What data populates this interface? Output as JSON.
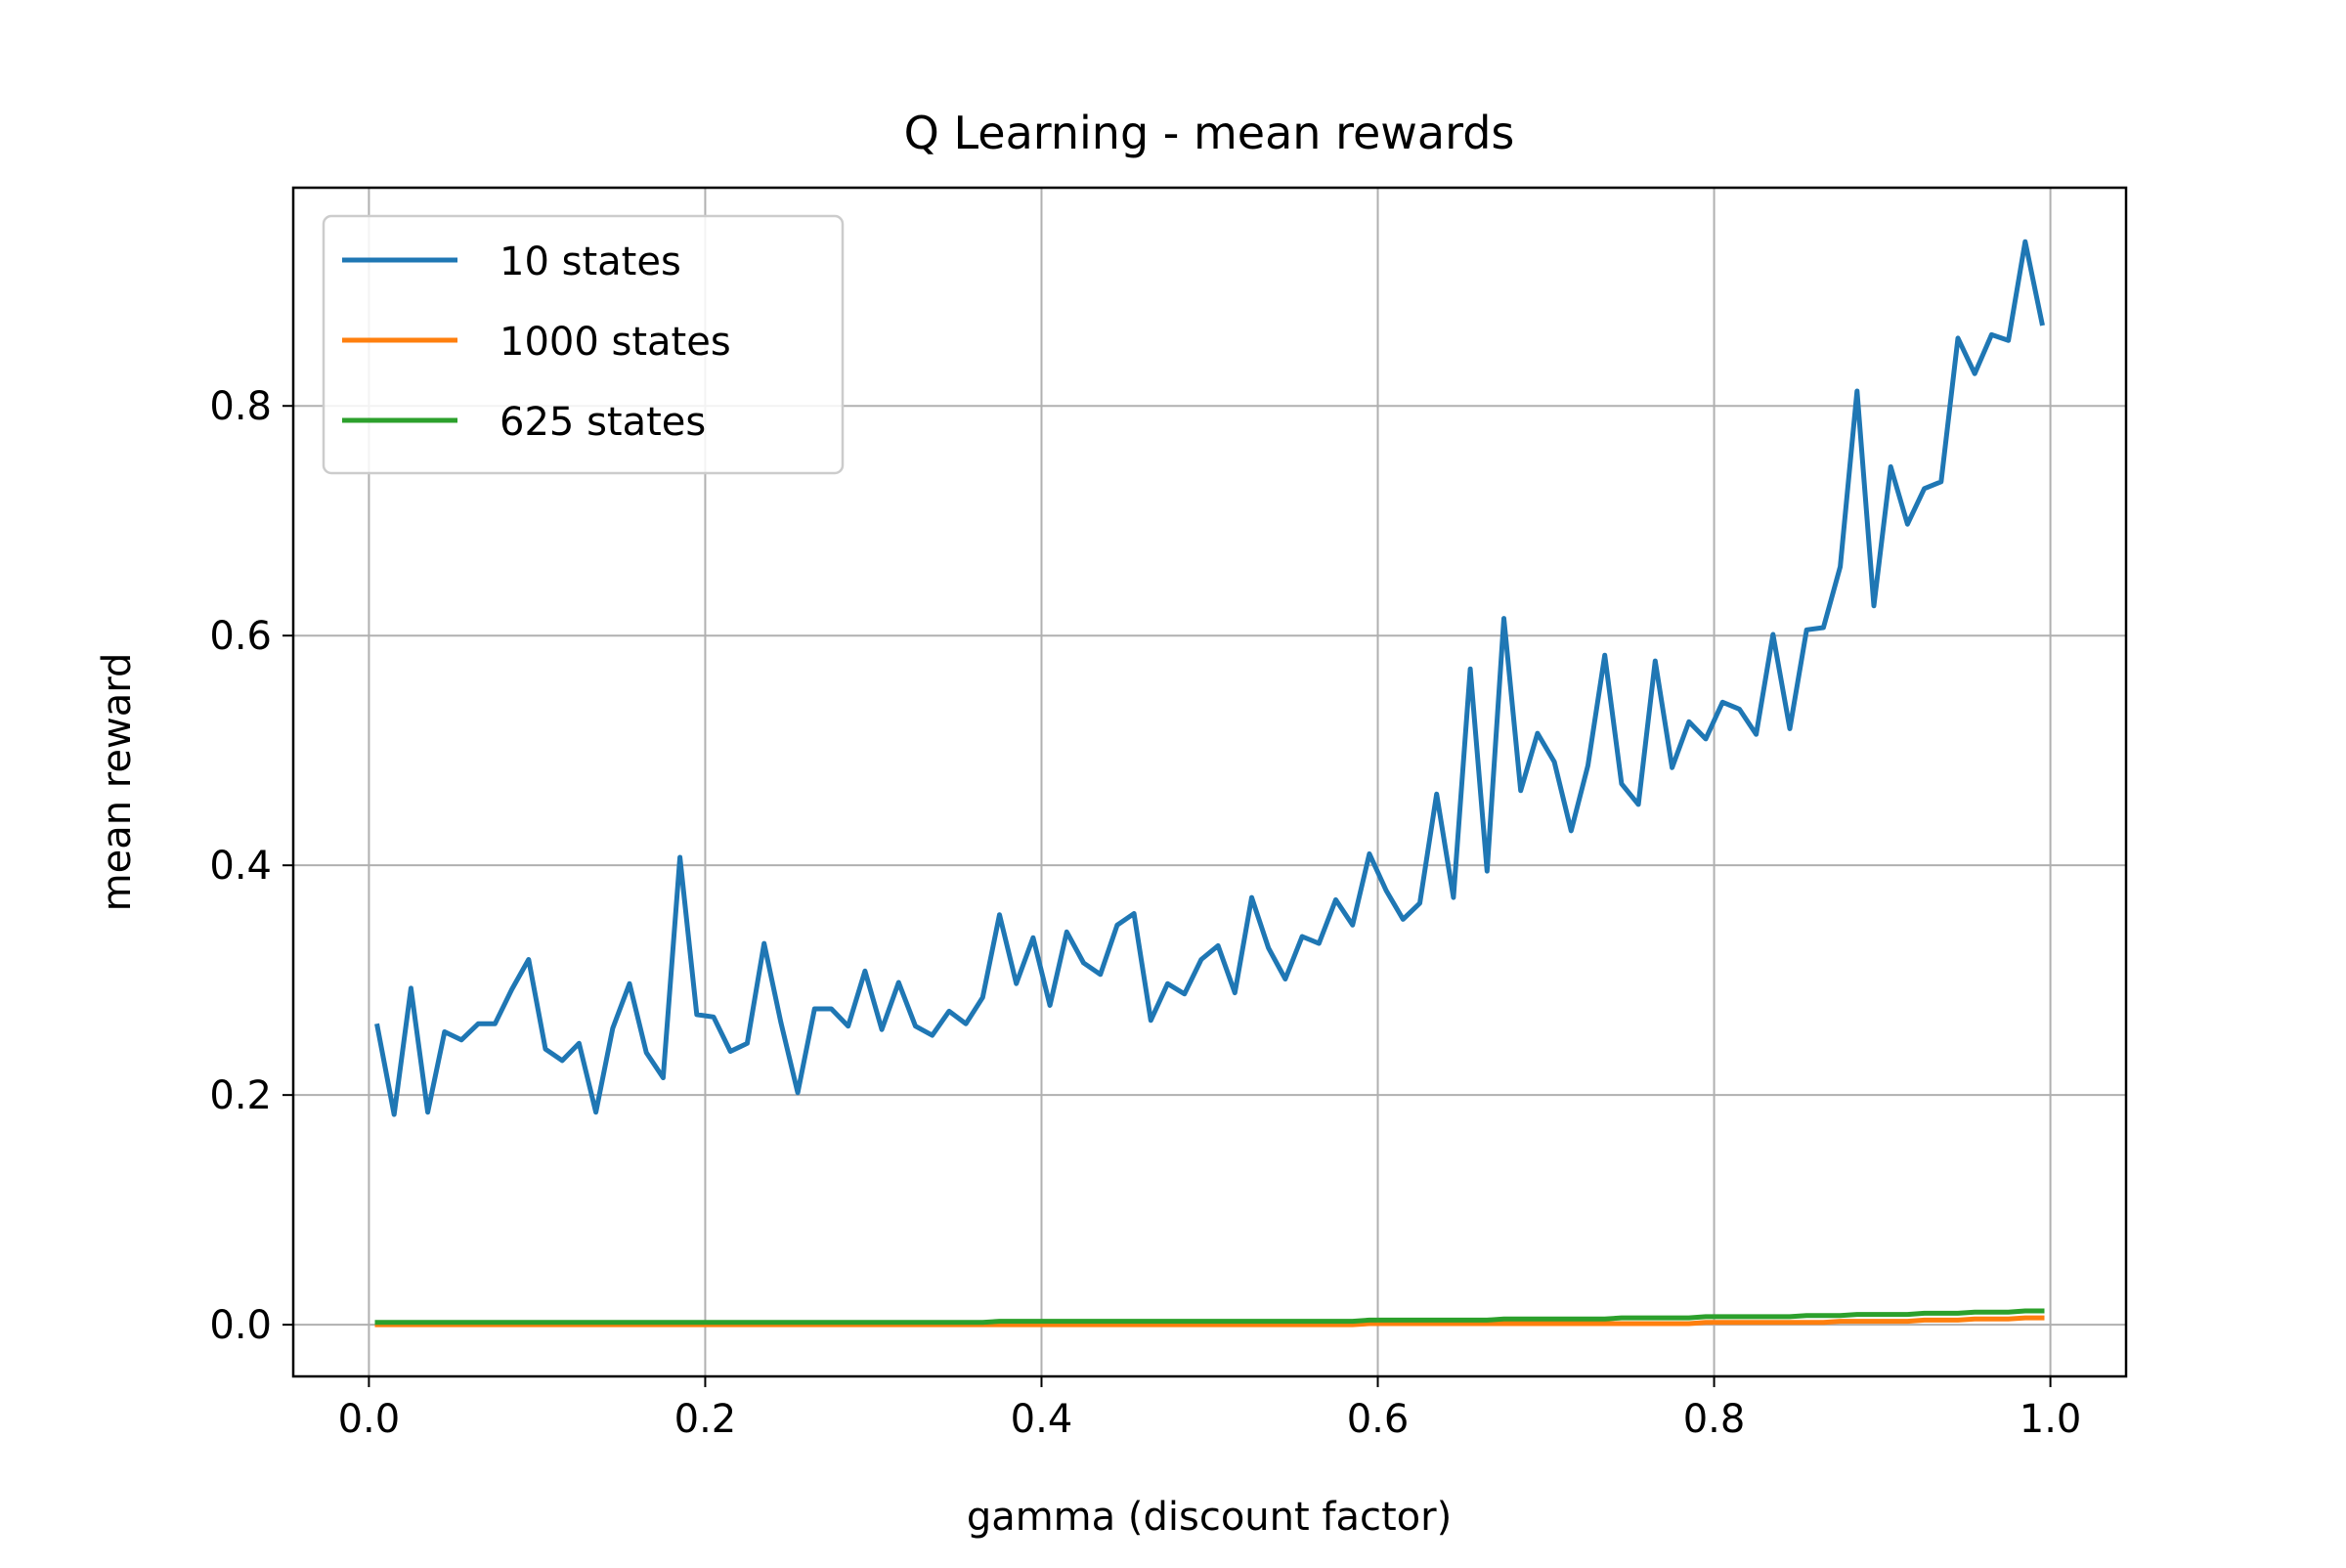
{
  "chart_data": {
    "type": "line",
    "title": "Q Learning - mean rewards",
    "xlabel": "gamma (discount factor)",
    "ylabel": "mean reward",
    "xlim": [
      -0.045,
      1.045
    ],
    "ylim": [
      -0.045,
      0.99
    ],
    "xticks": [
      0.0,
      0.2,
      0.4,
      0.6,
      0.8,
      1.0
    ],
    "xtick_labels": [
      "0.0",
      "0.2",
      "0.4",
      "0.6",
      "0.8",
      "1.0"
    ],
    "yticks": [
      0.0,
      0.2,
      0.4,
      0.6,
      0.8
    ],
    "ytick_labels": [
      "0.0",
      "0.2",
      "0.4",
      "0.6",
      "0.8"
    ],
    "grid": true,
    "legend_position": "upper-left",
    "x": [
      0.005,
      0.015,
      0.025,
      0.035,
      0.045,
      0.055,
      0.065,
      0.075,
      0.085,
      0.095,
      0.105,
      0.115,
      0.125,
      0.135,
      0.145,
      0.155,
      0.165,
      0.175,
      0.185,
      0.195,
      0.205,
      0.215,
      0.225,
      0.235,
      0.245,
      0.255,
      0.265,
      0.275,
      0.285,
      0.295,
      0.305,
      0.315,
      0.325,
      0.335,
      0.345,
      0.355,
      0.365,
      0.375,
      0.385,
      0.395,
      0.405,
      0.415,
      0.425,
      0.435,
      0.445,
      0.455,
      0.465,
      0.475,
      0.485,
      0.495,
      0.505,
      0.515,
      0.525,
      0.535,
      0.545,
      0.555,
      0.565,
      0.575,
      0.585,
      0.595,
      0.605,
      0.615,
      0.625,
      0.635,
      0.645,
      0.655,
      0.665,
      0.675,
      0.685,
      0.695,
      0.705,
      0.715,
      0.725,
      0.735,
      0.745,
      0.755,
      0.765,
      0.775,
      0.785,
      0.795,
      0.805,
      0.815,
      0.825,
      0.835,
      0.845,
      0.855,
      0.865,
      0.875,
      0.885,
      0.895,
      0.905,
      0.915,
      0.925,
      0.935,
      0.945,
      0.955,
      0.965,
      0.975,
      0.985,
      0.995
    ],
    "series": [
      {
        "name": "10 states",
        "color": "#1f77b4",
        "values": [
          0.26,
          0.183,
          0.293,
          0.185,
          0.255,
          0.248,
          0.262,
          0.262,
          0.292,
          0.318,
          0.24,
          0.23,
          0.245,
          0.185,
          0.258,
          0.297,
          0.237,
          0.215,
          0.407,
          0.27,
          0.268,
          0.238,
          0.245,
          0.332,
          0.263,
          0.202,
          0.275,
          0.275,
          0.26,
          0.308,
          0.257,
          0.298,
          0.26,
          0.252,
          0.273,
          0.262,
          0.285,
          0.357,
          0.297,
          0.337,
          0.278,
          0.342,
          0.315,
          0.305,
          0.348,
          0.358,
          0.265,
          0.297,
          0.288,
          0.318,
          0.33,
          0.289,
          0.372,
          0.328,
          0.301,
          0.338,
          0.332,
          0.37,
          0.348,
          0.41,
          0.378,
          0.353,
          0.367,
          0.462,
          0.372,
          0.571,
          0.395,
          0.615,
          0.465,
          0.515,
          0.49,
          0.43,
          0.487,
          0.583,
          0.471,
          0.453,
          0.578,
          0.485,
          0.525,
          0.51,
          0.542,
          0.536,
          0.514,
          0.601,
          0.519,
          0.605,
          0.607,
          0.66,
          0.813,
          0.626,
          0.747,
          0.697,
          0.728,
          0.734,
          0.859,
          0.828,
          0.862,
          0.857,
          0.943,
          0.872
        ]
      },
      {
        "name": "1000 states",
        "color": "#ff7f0e",
        "values": [
          0.0,
          0.0,
          0.0,
          0.0,
          0.0,
          0.0,
          0.0,
          0.0,
          0.0,
          0.0,
          0.0,
          0.0,
          0.0,
          0.0,
          0.0,
          0.0,
          0.0,
          0.0,
          0.0,
          0.0,
          0.0,
          0.0,
          0.0,
          0.0,
          0.0,
          0.0,
          0.0,
          0.0,
          0.0,
          0.0,
          0.0,
          0.0,
          0.0,
          0.0,
          0.0,
          0.0,
          0.0,
          0.0,
          0.0,
          0.0,
          0.0,
          0.0,
          0.0,
          0.0,
          0.0,
          0.0,
          0.0,
          0.0,
          0.0,
          0.0,
          0.0,
          0.0,
          0.0,
          0.0,
          0.0,
          0.0,
          0.0,
          0.0,
          0.0,
          0.001,
          0.001,
          0.001,
          0.001,
          0.001,
          0.001,
          0.001,
          0.001,
          0.001,
          0.001,
          0.001,
          0.001,
          0.001,
          0.001,
          0.001,
          0.001,
          0.001,
          0.001,
          0.001,
          0.001,
          0.002,
          0.002,
          0.002,
          0.002,
          0.002,
          0.002,
          0.002,
          0.002,
          0.003,
          0.003,
          0.003,
          0.003,
          0.003,
          0.004,
          0.004,
          0.004,
          0.005,
          0.005,
          0.005,
          0.006,
          0.006
        ]
      },
      {
        "name": "625 states",
        "color": "#2ca02c",
        "values": [
          0.002,
          0.002,
          0.002,
          0.002,
          0.002,
          0.002,
          0.002,
          0.002,
          0.002,
          0.002,
          0.002,
          0.002,
          0.002,
          0.002,
          0.002,
          0.002,
          0.002,
          0.002,
          0.002,
          0.002,
          0.002,
          0.002,
          0.002,
          0.002,
          0.002,
          0.002,
          0.002,
          0.002,
          0.002,
          0.002,
          0.002,
          0.002,
          0.002,
          0.002,
          0.002,
          0.002,
          0.002,
          0.003,
          0.003,
          0.003,
          0.003,
          0.003,
          0.003,
          0.003,
          0.003,
          0.003,
          0.003,
          0.003,
          0.003,
          0.003,
          0.003,
          0.003,
          0.003,
          0.003,
          0.003,
          0.003,
          0.003,
          0.003,
          0.003,
          0.004,
          0.004,
          0.004,
          0.004,
          0.004,
          0.004,
          0.004,
          0.004,
          0.005,
          0.005,
          0.005,
          0.005,
          0.005,
          0.005,
          0.005,
          0.006,
          0.006,
          0.006,
          0.006,
          0.006,
          0.007,
          0.007,
          0.007,
          0.007,
          0.007,
          0.007,
          0.008,
          0.008,
          0.008,
          0.009,
          0.009,
          0.009,
          0.009,
          0.01,
          0.01,
          0.01,
          0.011,
          0.011,
          0.011,
          0.012,
          0.012
        ]
      }
    ]
  }
}
